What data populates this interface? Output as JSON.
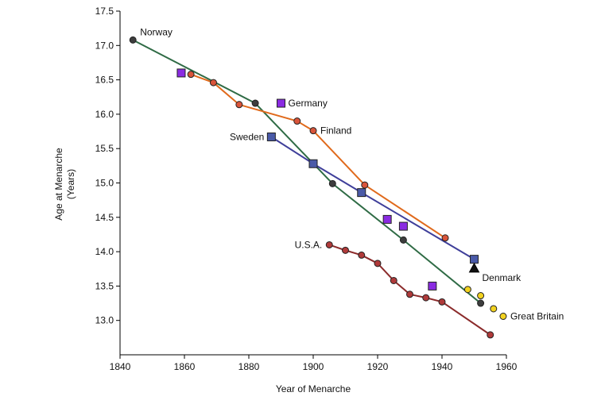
{
  "chart_data": {
    "type": "scatter",
    "title": "",
    "xlabel": "Year of Menarche",
    "ylabel_lines": [
      "Age at Menarche",
      "(Years)"
    ],
    "xlim": [
      1840,
      1960
    ],
    "ylim": [
      12.5,
      17.5
    ],
    "x_ticks": [
      1840,
      1860,
      1880,
      1900,
      1920,
      1940,
      1960
    ],
    "y_ticks": [
      "13.0",
      "13.5",
      "14.0",
      "14.5",
      "15.0",
      "15.5",
      "16.0",
      "16.5",
      "17.0",
      "17.5"
    ],
    "grid": false,
    "series": [
      {
        "name": "Norway",
        "marker": "circle",
        "color": "#2f6b45",
        "marker_fill": "#3d3d3d",
        "connected": true,
        "x": [
          1844,
          1882,
          1906,
          1928,
          1952
        ],
        "y": [
          17.08,
          16.16,
          14.99,
          14.17,
          13.25
        ]
      },
      {
        "name": "Finland",
        "marker": "circle",
        "color": "#e06a1c",
        "marker_fill": "#d9543a",
        "connected": true,
        "x": [
          1862,
          1869,
          1877,
          1895,
          1900,
          1916,
          1941
        ],
        "y": [
          16.58,
          16.46,
          16.14,
          15.9,
          15.76,
          14.97,
          14.2
        ]
      },
      {
        "name": "Sweden",
        "marker": "square",
        "color": "#3f3f9a",
        "marker_fill": "#4a5aa8",
        "connected": true,
        "x": [
          1887,
          1900,
          1915,
          1950
        ],
        "y": [
          15.67,
          15.28,
          14.86,
          13.89
        ]
      },
      {
        "name": "Germany",
        "marker": "square",
        "color": "#8a2be2",
        "marker_fill": "#8a2be2",
        "connected": false,
        "x": [
          1859,
          1890,
          1923,
          1928,
          1937
        ],
        "y": [
          16.6,
          16.16,
          14.47,
          14.37,
          13.5
        ]
      },
      {
        "name": "U.S.A.",
        "marker": "circle",
        "color": "#8b2b2b",
        "marker_fill": "#b03a3a",
        "connected": true,
        "x": [
          1905,
          1910,
          1915,
          1920,
          1925,
          1930,
          1935,
          1940,
          1955
        ],
        "y": [
          14.1,
          14.02,
          13.95,
          13.83,
          13.58,
          13.38,
          13.33,
          13.27,
          12.79
        ]
      },
      {
        "name": "Denmark",
        "marker": "triangle",
        "color": "#000000",
        "marker_fill": "#111111",
        "connected": false,
        "x": [
          1950
        ],
        "y": [
          13.76
        ]
      },
      {
        "name": "Great Britain",
        "marker": "circle",
        "color": "#f2d21f",
        "marker_fill": "#f2d21f",
        "connected": false,
        "x": [
          1948,
          1952,
          1956,
          1959
        ],
        "y": [
          13.45,
          13.36,
          13.17,
          13.06
        ]
      }
    ],
    "labels": [
      {
        "text": "Norway",
        "anchor_series": 0,
        "anchor_index": 0,
        "position": "right"
      },
      {
        "text": "Germany",
        "anchor_series": 3,
        "anchor_index": 1,
        "position": "right"
      },
      {
        "text": "Finland",
        "anchor_series": 1,
        "anchor_index": 4,
        "position": "right"
      },
      {
        "text": "Sweden",
        "anchor_series": 2,
        "anchor_index": 0,
        "position": "left"
      },
      {
        "text": "U.S.A.",
        "anchor_series": 4,
        "anchor_index": 0,
        "position": "left"
      },
      {
        "text": "Denmark",
        "anchor_series": 5,
        "anchor_index": 0,
        "position": "below-right"
      },
      {
        "text": "Great Britain",
        "anchor_series": 6,
        "anchor_index": 3,
        "position": "right"
      }
    ]
  }
}
